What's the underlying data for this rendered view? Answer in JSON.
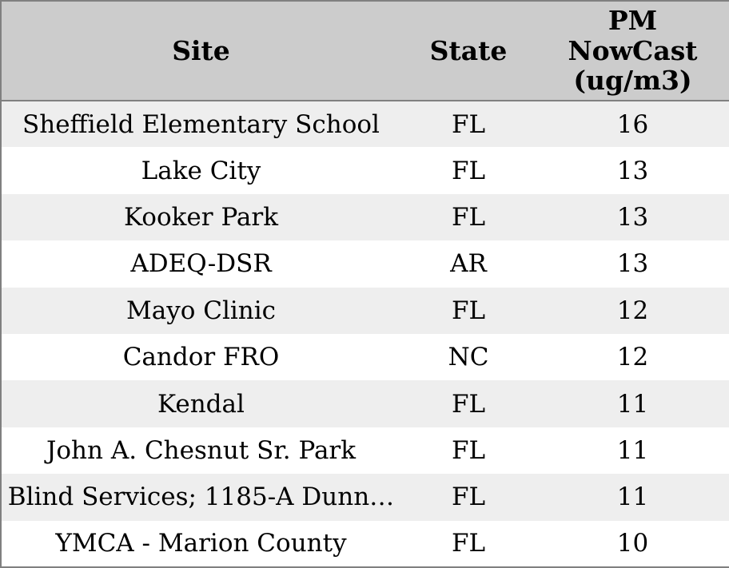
{
  "table": {
    "columns": [
      {
        "key": "site",
        "label": "Site"
      },
      {
        "key": "state",
        "label": "State"
      },
      {
        "key": "pm_nowcast",
        "label": "PM NowCast (ug/m3)"
      }
    ],
    "rows": [
      {
        "site": "Sheffield Elementary School",
        "state": "FL",
        "pm_nowcast": "16"
      },
      {
        "site": "Lake City",
        "state": "FL",
        "pm_nowcast": "13"
      },
      {
        "site": "Kooker Park",
        "state": "FL",
        "pm_nowcast": "13"
      },
      {
        "site": "ADEQ-DSR",
        "state": "AR",
        "pm_nowcast": "13"
      },
      {
        "site": "Mayo Clinic",
        "state": "FL",
        "pm_nowcast": "12"
      },
      {
        "site": "Candor FRO",
        "state": "NC",
        "pm_nowcast": "12"
      },
      {
        "site": "Kendal",
        "state": "FL",
        "pm_nowcast": "11"
      },
      {
        "site": "John A. Chesnut Sr. Park",
        "state": "FL",
        "pm_nowcast": "11"
      },
      {
        "site": "Blind Services; 1185-A Dunn…",
        "state": "FL",
        "pm_nowcast": "11"
      },
      {
        "site": "YMCA - Marion County",
        "state": "FL",
        "pm_nowcast": "10"
      }
    ]
  },
  "colors": {
    "header_bg": "#cccccc",
    "row_alt_bg": "#eeeeee",
    "row_bg": "#ffffff",
    "border": "#808080",
    "text": "#000000"
  },
  "chart_data": {
    "type": "table",
    "columns": [
      "Site",
      "State",
      "PM NowCast (ug/m3)"
    ],
    "rows": [
      [
        "Sheffield Elementary School",
        "FL",
        16
      ],
      [
        "Lake City",
        "FL",
        13
      ],
      [
        "Kooker Park",
        "FL",
        13
      ],
      [
        "ADEQ-DSR",
        "AR",
        13
      ],
      [
        "Mayo Clinic",
        "FL",
        12
      ],
      [
        "Candor FRO",
        "NC",
        12
      ],
      [
        "Kendal",
        "FL",
        11
      ],
      [
        "John A. Chesnut Sr. Park",
        "FL",
        11
      ],
      [
        "Blind Services; 1185-A Dunn…",
        "FL",
        11
      ],
      [
        "YMCA - Marion County",
        "FL",
        10
      ]
    ]
  }
}
